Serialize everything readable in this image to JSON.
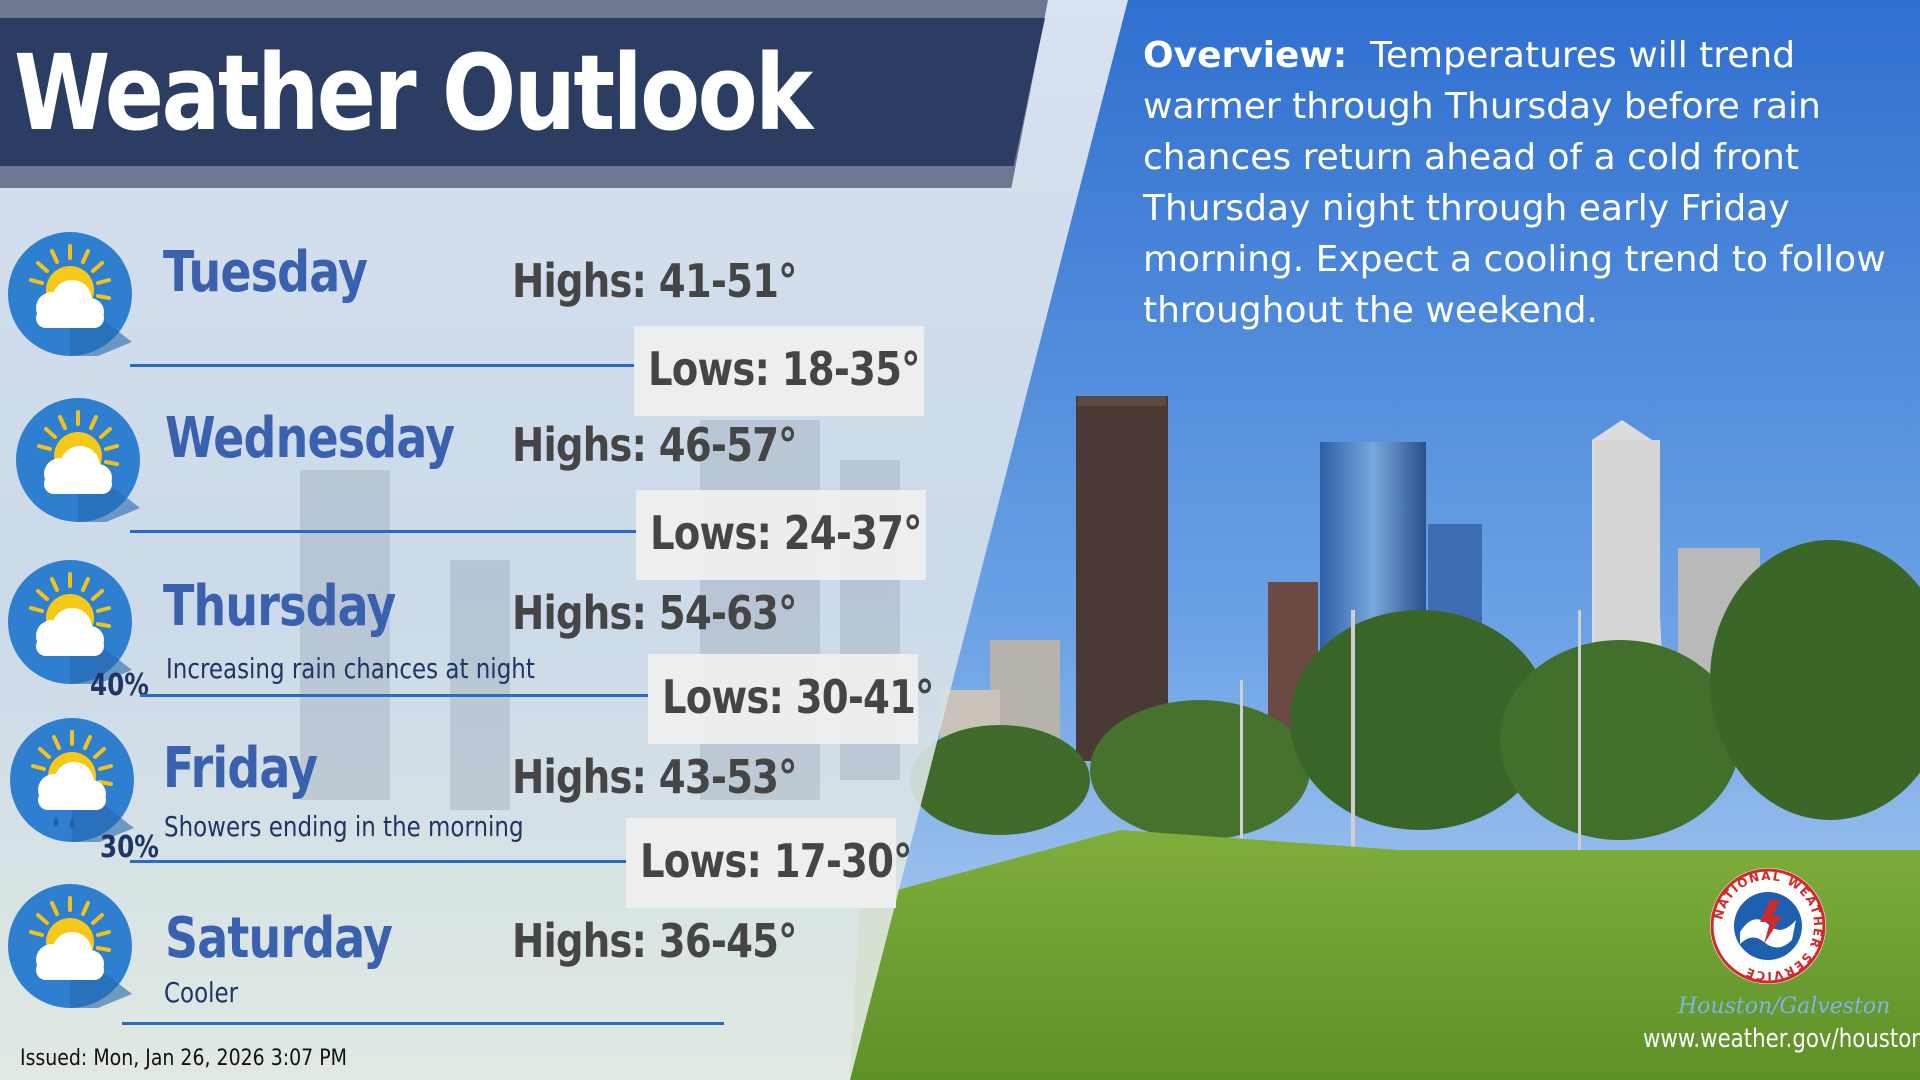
{
  "title": "Weather Outlook",
  "days": [
    {
      "name": "Tuesday",
      "highs": "Highs: 41-51°",
      "lows": "Lows: 18-35°",
      "note": "",
      "pct": "",
      "icon": "partly-cloudy-icon"
    },
    {
      "name": "Wednesday",
      "highs": "Highs: 46-57°",
      "lows": "Lows: 24-37°",
      "note": "",
      "pct": "",
      "icon": "partly-cloudy-icon"
    },
    {
      "name": "Thursday",
      "highs": "Highs: 54-63°",
      "lows": "Lows: 30-41°",
      "note": "Increasing rain chances at night",
      "pct": "40%",
      "icon": "partly-cloudy-icon"
    },
    {
      "name": "Friday",
      "highs": "Highs: 43-53°",
      "lows": "Lows: 17-30°",
      "note": "Showers ending in the morning",
      "pct": "30%",
      "icon": "partly-cloudy-rain-icon"
    },
    {
      "name": "Saturday",
      "highs": "Highs: 36-45°",
      "lows": "",
      "note": "Cooler",
      "pct": "",
      "icon": "partly-cloudy-icon"
    }
  ],
  "overview": {
    "label": "Overview:",
    "text": "Temperatures will trend warmer through Thursday before rain chances return ahead of a cold front Thursday night through early Friday morning. Expect a cooling trend to follow throughout the weekend."
  },
  "issued": "Issued: Mon, Jan 26, 2026 3:07 PM",
  "footer": {
    "logo_text": "NATIONAL WEATHER SERVICE",
    "office": "Houston/Galveston",
    "url": "www.weather.gov/houston"
  },
  "colors": {
    "banner": "#2b3d63",
    "day_name": "#3a61ad",
    "separator": "#2a6bc2",
    "sky": "#3c7fd6"
  }
}
